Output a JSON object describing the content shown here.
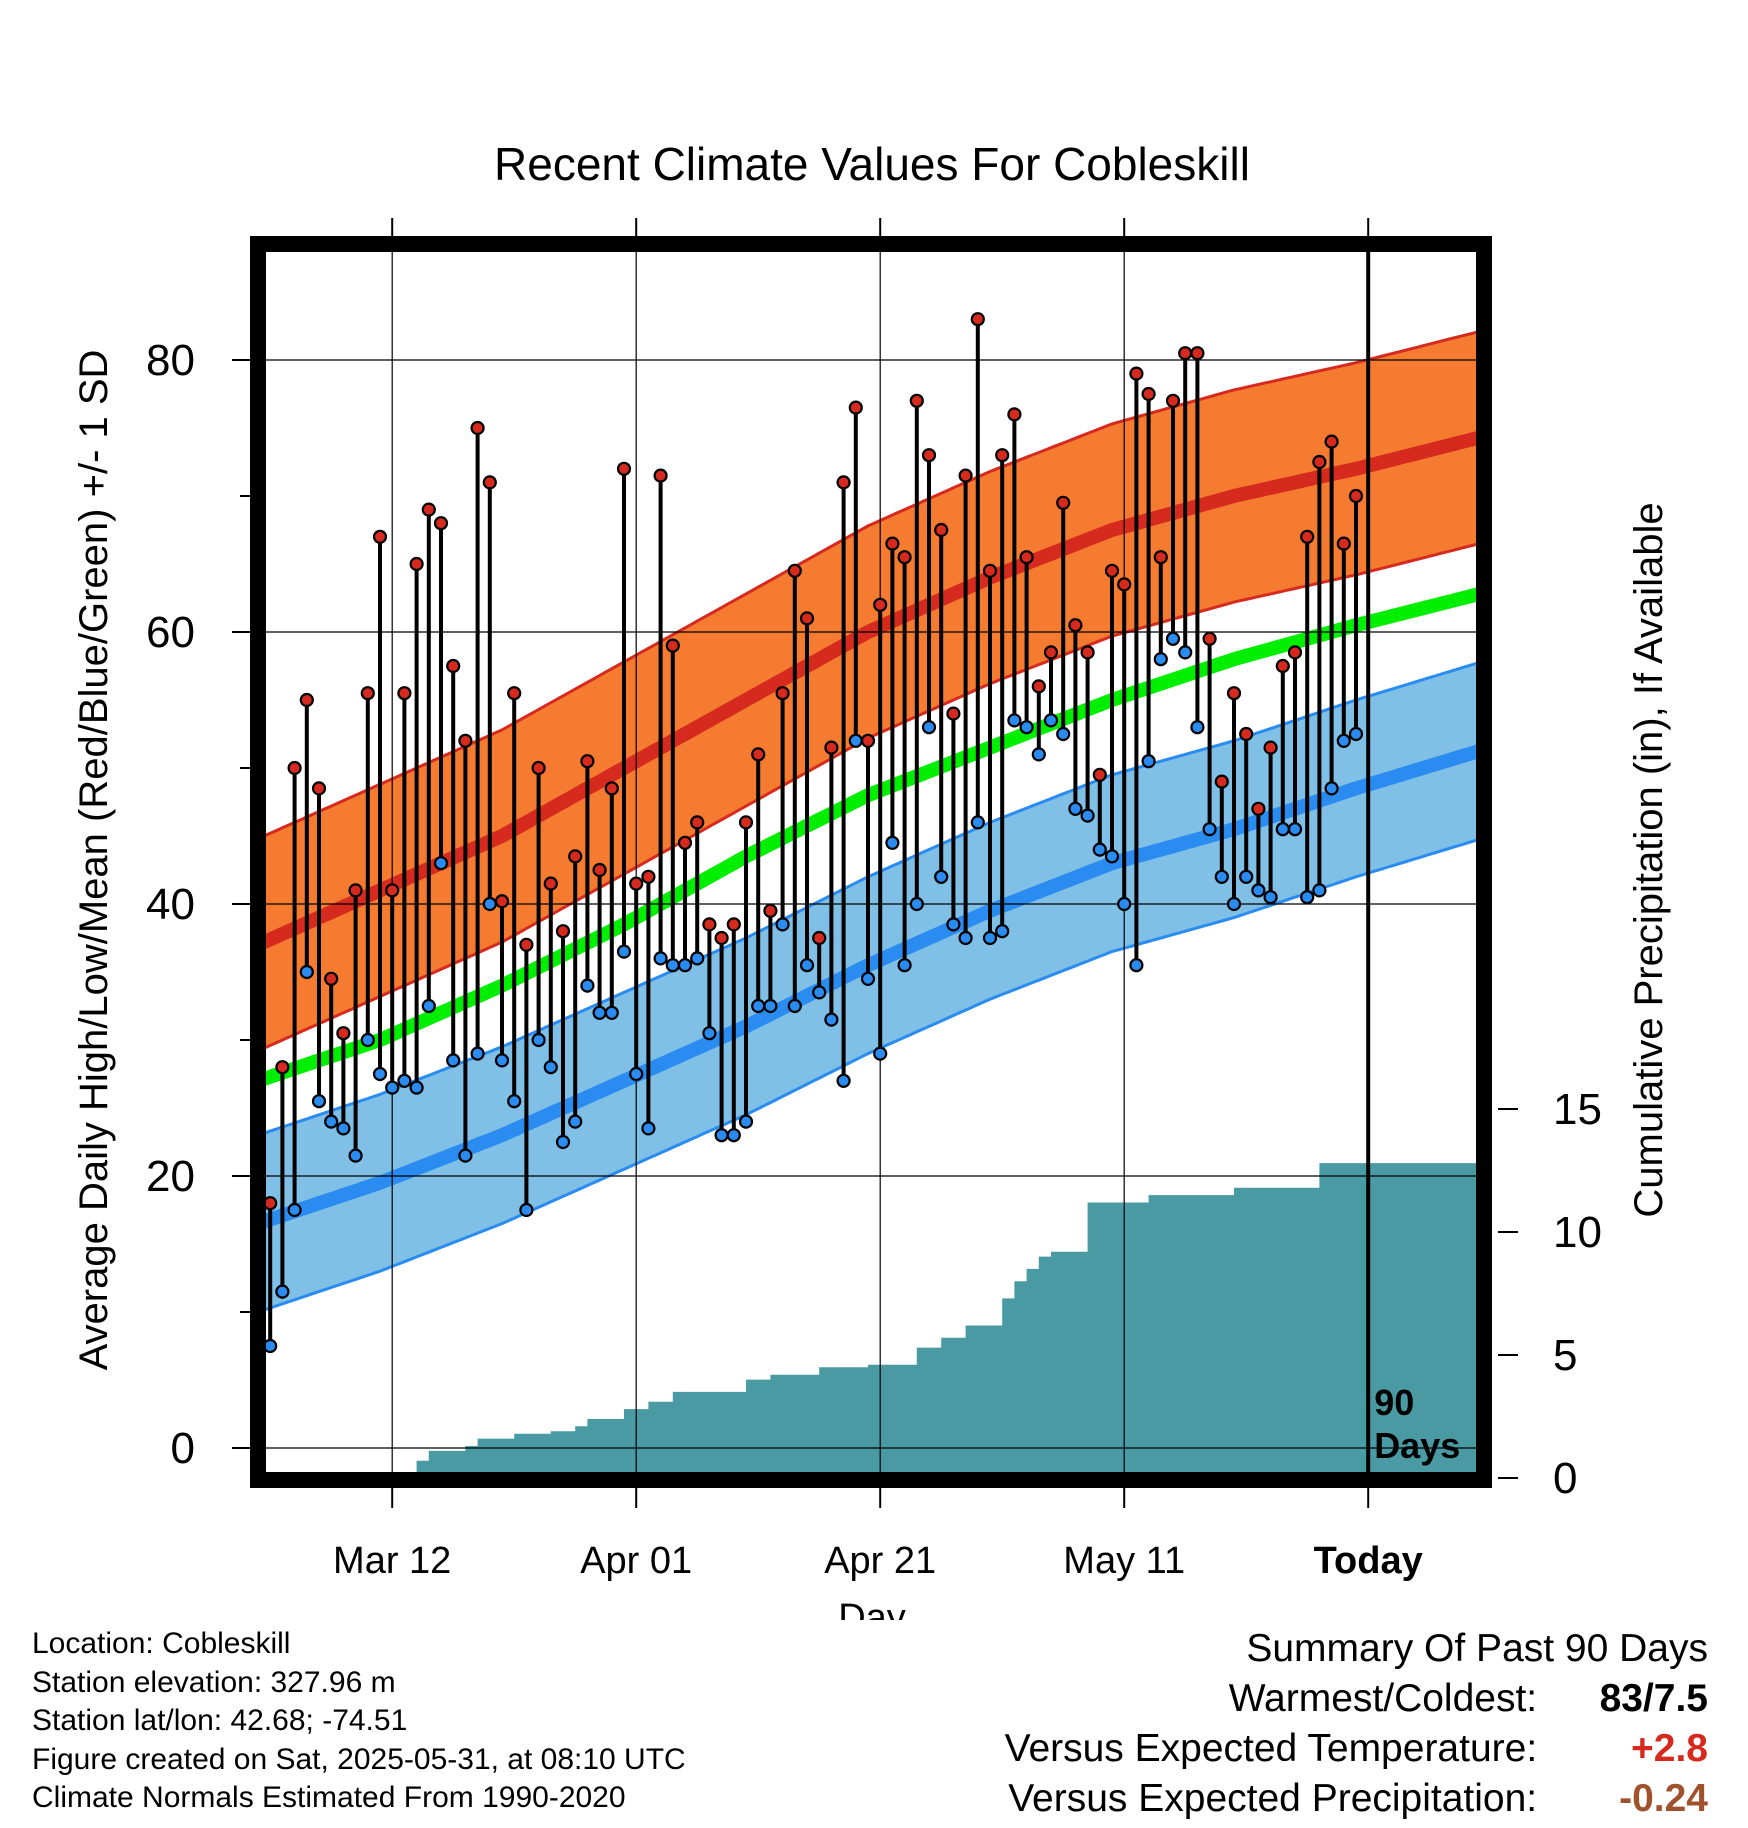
{
  "chart_data": {
    "type": "line",
    "title": "Recent Climate Values For Cobleskill",
    "xlabel": "Day",
    "ylabel": "Average Daily High/Low/Mean (Red/Blue/Green) +/- 1 SD",
    "y2label": "Cumulative Precipitation (in), If Available",
    "x_tick_labels": [
      "Mar 12",
      "Apr 01",
      "Apr 21",
      "May 11",
      "Today"
    ],
    "x_tick_days": [
      11,
      31,
      51,
      71,
      91
    ],
    "xlim": [
      0,
      101
    ],
    "ylim": [
      -3,
      88
    ],
    "y_ticks": [
      0,
      20,
      40,
      60,
      80
    ],
    "y2_ticks": [
      0,
      5,
      10,
      15
    ],
    "y2lim": [
      0,
      15
    ],
    "today_marker": {
      "day": 91,
      "label_line1": "90",
      "label_line2": "Days"
    },
    "normal_high": {
      "x": [
        0,
        10,
        20,
        30,
        40,
        50,
        60,
        70,
        80,
        90,
        101
      ],
      "mean": [
        37.0,
        41.0,
        45.0,
        50.0,
        55.0,
        60.0,
        64.0,
        67.5,
        70.0,
        72.0,
        74.5
      ],
      "sd": 7.8
    },
    "normal_low": {
      "x": [
        0,
        10,
        20,
        30,
        40,
        50,
        60,
        70,
        80,
        90,
        101
      ],
      "mean": [
        16.5,
        19.5,
        23.0,
        27.0,
        31.0,
        35.5,
        39.5,
        43.0,
        45.5,
        48.5,
        51.5
      ],
      "sd": 6.5
    },
    "normal_mean": {
      "x": [
        0,
        10,
        20,
        30,
        40,
        50,
        60,
        70,
        80,
        90,
        101
      ],
      "values": [
        27.0,
        30.0,
        34.0,
        38.5,
        43.5,
        48.0,
        51.5,
        55.0,
        58.0,
        60.5,
        63.0
      ]
    },
    "daily_high": [
      18,
      28,
      50,
      55,
      48.5,
      34.5,
      30.5,
      41,
      55.5,
      67,
      41,
      55.5,
      65,
      69,
      68,
      57.5,
      52,
      75,
      71,
      40.2,
      55.5,
      37,
      50,
      41.5,
      38,
      43.5,
      50.5,
      42.5,
      48.5,
      72,
      41.5,
      42,
      71.5,
      59,
      44.5,
      46,
      38.5,
      37.5,
      38.5,
      46,
      51,
      39.5,
      55.5,
      64.5,
      61,
      37.5,
      51.5,
      71,
      76.5,
      52,
      62,
      66.5,
      65.5,
      77,
      73,
      67.5,
      54,
      71.5,
      83,
      64.5,
      73,
      76,
      65.5,
      56,
      58.5,
      69.5,
      60.5,
      58.5,
      49.5,
      64.5,
      63.5,
      79,
      77.5,
      65.5,
      77,
      80.5,
      80.5,
      59.5,
      49,
      55.5,
      52.5,
      47,
      51.5,
      57.5,
      58.5,
      67,
      72.5,
      74,
      66.5,
      70
    ],
    "daily_low": [
      7.5,
      11.5,
      17.5,
      35,
      25.5,
      24,
      23.5,
      21.5,
      30,
      27.5,
      26.5,
      27,
      26.5,
      32.5,
      43,
      28.5,
      21.5,
      29,
      40,
      28.5,
      25.5,
      17.5,
      30,
      28,
      22.5,
      24,
      34,
      32,
      32,
      36.5,
      27.5,
      23.5,
      36,
      35.5,
      35.5,
      36,
      30.5,
      23,
      23,
      24,
      32.5,
      32.5,
      38.5,
      32.5,
      35.5,
      33.5,
      31.5,
      27,
      52,
      34.5,
      29,
      44.5,
      35.5,
      40,
      53,
      42,
      38.5,
      37.5,
      46,
      37.5,
      38,
      53.5,
      53,
      51,
      53.5,
      52.5,
      47,
      46.5,
      44,
      43.5,
      40,
      35.5,
      50.5,
      58,
      59.5,
      58.5,
      53,
      45.5,
      42,
      40,
      42,
      41,
      40.5,
      45.5,
      45.5,
      40.5,
      41,
      48.5,
      52,
      52.5
    ],
    "precip_cumulative": {
      "x": [
        0,
        12,
        13,
        14,
        15,
        16,
        17,
        18,
        19,
        20,
        21,
        22,
        23,
        24,
        25,
        26,
        27,
        28,
        29,
        30,
        31,
        32,
        33,
        34,
        35,
        36,
        37,
        38,
        39,
        40,
        41,
        42,
        43,
        44,
        45,
        46,
        47,
        48,
        49,
        50,
        51,
        52,
        53,
        54,
        55,
        56,
        57,
        58,
        59,
        60,
        61,
        62,
        63,
        64,
        65,
        66,
        67,
        68,
        69,
        70,
        71,
        72,
        73,
        74,
        75,
        76,
        77,
        78,
        79,
        80,
        81,
        82,
        83,
        84,
        85,
        86,
        87,
        88,
        89,
        90,
        101
      ],
      "values": [
        0,
        0,
        0.7,
        1.1,
        1.1,
        1.1,
        1.3,
        1.6,
        1.6,
        1.6,
        1.8,
        1.8,
        1.8,
        1.9,
        1.9,
        2.1,
        2.4,
        2.4,
        2.4,
        2.8,
        2.8,
        3.1,
        3.1,
        3.5,
        3.5,
        3.5,
        3.5,
        3.5,
        3.5,
        4,
        4,
        4.2,
        4.2,
        4.2,
        4.2,
        4.5,
        4.5,
        4.5,
        4.5,
        4.6,
        4.6,
        4.6,
        4.6,
        5.3,
        5.3,
        5.7,
        5.7,
        6.2,
        6.2,
        6.2,
        7.3,
        8,
        8.5,
        9,
        9.2,
        9.2,
        9.2,
        11.2,
        11.2,
        11.2,
        11.2,
        11.2,
        11.5,
        11.5,
        11.5,
        11.5,
        11.5,
        11.5,
        11.5,
        11.8,
        11.8,
        11.8,
        11.8,
        11.8,
        11.8,
        11.8,
        12.8,
        12.8,
        12.8,
        12.8,
        12.8
      ],
      "note": ""
    },
    "grid": true
  },
  "info": {
    "location": "Location: Cobleskill",
    "elevation": "Station elevation: 327.96 m",
    "latlon": "Station lat/lon: 42.68; -74.51",
    "created": "Figure created on Sat, 2025-05-31, at 08:10 UTC",
    "normals": "Climate Normals Estimated From 1990-2020"
  },
  "summary": {
    "heading": "Summary Of Past 90 Days",
    "warmest_coldest_label": "Warmest/Coldest:",
    "warmest_coldest_value": "83/7.5",
    "temp_label": "Versus Expected Temperature:",
    "temp_value": "+2.8",
    "precip_label": "Versus Expected Precipitation:",
    "precip_value": "-0.24"
  },
  "colors": {
    "high_band": "#f47b30",
    "high_band_edge": "#d62a1f",
    "high_mean": "#d62a1f",
    "low_band": "#80bfe6",
    "low_band_edge": "#2a8cf0",
    "low_mean": "#2a8cf0",
    "normal_mean": "#00ee00",
    "precip": "#4a9aa4",
    "high_point": "#d62a1f",
    "low_point": "#2a8cf0",
    "temp_value": "#d62a1f",
    "precip_value": "#a0522d"
  }
}
